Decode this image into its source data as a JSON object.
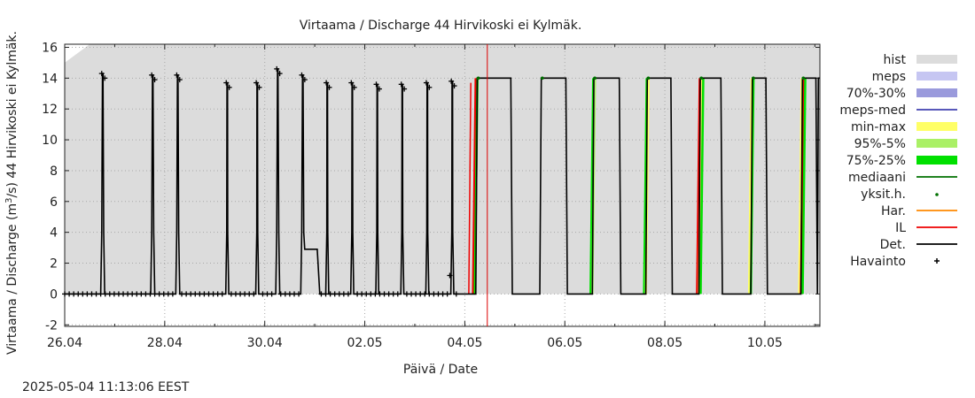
{
  "chart_data": {
    "type": "line",
    "title": "Virtaama / Discharge  44 Hirvikoski ei Kylmäk.",
    "xlabel": "Päivä / Date",
    "ylabel_main": "Virtaama / Discharge (m",
    "ylabel_sup": "3",
    "ylabel_end": "/s)  44 Hirvikoski ei Kylmäk.",
    "x_ticks": [
      "26.04",
      "28.04",
      "30.04",
      "02.05",
      "04.05",
      "06.05",
      "08.05",
      "10.05"
    ],
    "y_ticks": [
      -2,
      0,
      2,
      4,
      6,
      8,
      10,
      12,
      14,
      16
    ],
    "ylim": [
      -2.1,
      16.2
    ],
    "xlim_days": [
      0,
      15.1
    ],
    "grid": true,
    "legend_position": "right",
    "now_marker_day": 8.45,
    "hist_band": {
      "upper_start": [
        15.0,
        16.2
      ],
      "upper_end_day": 0.5,
      "lower": 0
    },
    "legend": [
      {
        "label": "hist",
        "style": "box",
        "color": "#dcdcdc"
      },
      {
        "label": "meps",
        "style": "box",
        "color": "#c6c6f2"
      },
      {
        "label": "70%-30%",
        "style": "box",
        "color": "#9a9adc"
      },
      {
        "label": "meps-med",
        "style": "line",
        "color": "#4040b0"
      },
      {
        "label": "min-max",
        "style": "box",
        "color": "#ffff66"
      },
      {
        "label": "95%-5%",
        "style": "box",
        "color": "#aaf066"
      },
      {
        "label": "75%-25%",
        "style": "box",
        "color": "#00e000"
      },
      {
        "label": "mediaani",
        "style": "line",
        "color": "#007000"
      },
      {
        "label": "yksit.h.",
        "style": "dot",
        "color": "#007000"
      },
      {
        "label": "Har.",
        "style": "line",
        "color": "#ff8800"
      },
      {
        "label": "IL",
        "style": "line",
        "color": "#ee0000"
      },
      {
        "label": "Det.",
        "style": "line",
        "color": "#000000"
      },
      {
        "label": "Havainto",
        "style": "plus",
        "color": "#000000"
      }
    ],
    "observed_pulses": [
      {
        "start": 0.72,
        "end": 0.8,
        "peak": 14.3
      },
      {
        "start": 1.72,
        "end": 1.8,
        "peak": 14.2
      },
      {
        "start": 2.22,
        "end": 2.3,
        "peak": 14.2
      },
      {
        "start": 3.22,
        "end": 3.28,
        "peak": 13.7
      },
      {
        "start": 3.82,
        "end": 3.88,
        "peak": 13.7
      },
      {
        "start": 4.22,
        "end": 4.3,
        "peak": 14.6
      },
      {
        "start": 4.72,
        "end": 4.8,
        "peak": 14.2
      },
      {
        "start": 5.22,
        "end": 5.28,
        "peak": 13.7
      },
      {
        "start": 5.72,
        "end": 5.78,
        "peak": 13.7
      },
      {
        "start": 6.22,
        "end": 6.28,
        "peak": 13.6
      },
      {
        "start": 6.72,
        "end": 6.78,
        "peak": 13.6
      },
      {
        "start": 7.22,
        "end": 7.28,
        "peak": 13.7
      },
      {
        "start": 7.72,
        "end": 7.78,
        "peak": 13.8
      }
    ],
    "observed_plateau": {
      "start": 4.8,
      "end": 5.05,
      "value": 2.9
    },
    "forecast_pulses": [
      {
        "start": 8.22,
        "end": 8.95,
        "peak": 14.0
      },
      {
        "start": 9.5,
        "end": 10.05,
        "peak": 14.0
      },
      {
        "start": 10.55,
        "end": 11.12,
        "peak": 14.0
      },
      {
        "start": 11.62,
        "end": 12.15,
        "peak": 14.0
      },
      {
        "start": 12.68,
        "end": 13.15,
        "peak": 14.0
      },
      {
        "start": 13.72,
        "end": 14.05,
        "peak": 14.0
      },
      {
        "start": 14.72,
        "end": 15.05,
        "peak": 14.0
      }
    ],
    "forecast_end_value": 14.0,
    "ensemble_rises": [
      {
        "day": 8.2,
        "colors": [
          "#ee0000",
          "#00e000"
        ]
      },
      {
        "day": 10.55,
        "colors": [
          "#00e000",
          "#aaf066"
        ]
      },
      {
        "day": 11.62,
        "colors": [
          "#00e000",
          "#ffff66"
        ]
      },
      {
        "day": 12.68,
        "colors": [
          "#ee0000",
          "#ffff66",
          "#00e000"
        ]
      },
      {
        "day": 13.72,
        "colors": [
          "#ffff66",
          "#00e000"
        ]
      },
      {
        "day": 14.72,
        "colors": [
          "#ffff66",
          "#ee0000",
          "#00e000"
        ]
      }
    ]
  },
  "timestamp": "2025-05-04 11:13:06 EEST"
}
